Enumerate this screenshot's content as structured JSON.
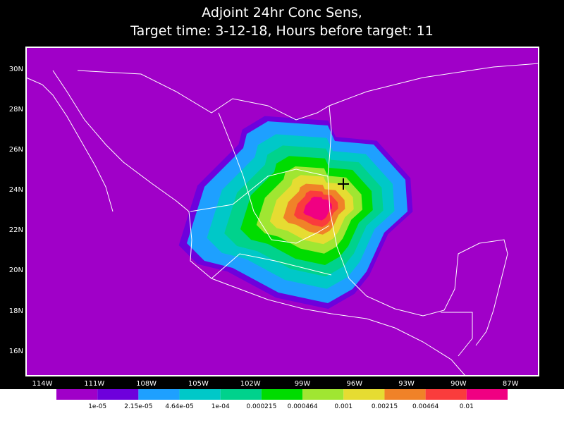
{
  "title": [
    "Adjoint 24hr Conc Sens,",
    "Target time: 3-12-18, Hours before target: 11"
  ],
  "lat_labels": [
    "30N",
    "28N",
    "26N",
    "24N",
    "22N",
    "20N",
    "18N",
    "16N"
  ],
  "lon_labels": [
    "114W",
    "111W",
    "108W",
    "105W",
    "102W",
    "99W",
    "96W",
    "93W",
    "90W",
    "87W"
  ],
  "colorbar": {
    "colors": [
      "#a000c8",
      "#6e00dc",
      "#1ea0ff",
      "#00c8c8",
      "#00d28c",
      "#00dc00",
      "#a0e632",
      "#e6dc32",
      "#f08228",
      "#fa3c3c",
      "#f00082"
    ],
    "labels": [
      "1e-05",
      "2.15e-05",
      "4.64e-05",
      "1e-04",
      "0.000215",
      "0.000464",
      "0.001",
      "0.00215",
      "0.00464",
      "0.01"
    ]
  }
}
